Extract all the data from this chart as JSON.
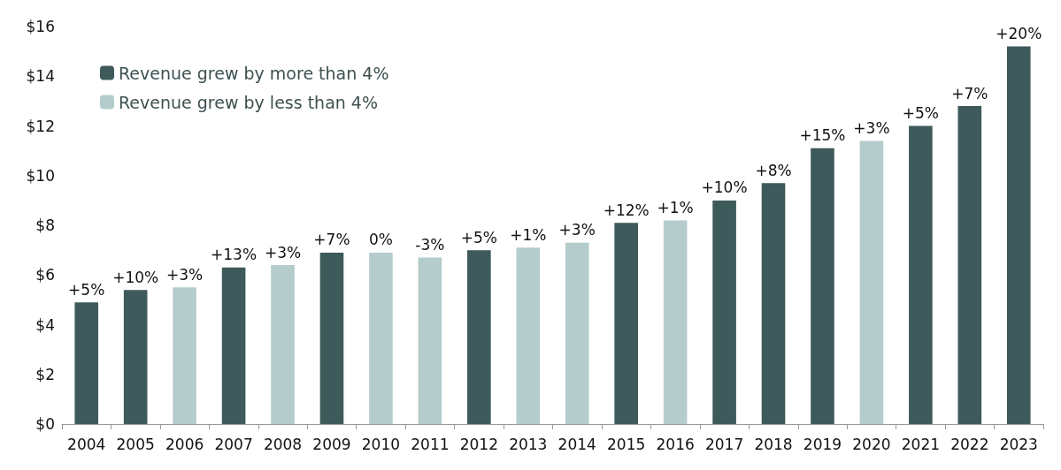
{
  "chart_data": {
    "type": "bar",
    "categories": [
      "2004",
      "2005",
      "2006",
      "2007",
      "2008",
      "2009",
      "2010",
      "2011",
      "2012",
      "2013",
      "2014",
      "2015",
      "2016",
      "2017",
      "2018",
      "2019",
      "2020",
      "2021",
      "2022",
      "2023"
    ],
    "series": [
      {
        "name": "Revenue grew by more than 4%",
        "color": "#3e5a5a",
        "values": [
          4.9,
          5.4,
          null,
          6.3,
          null,
          6.9,
          null,
          null,
          7.0,
          null,
          null,
          8.1,
          null,
          9.0,
          9.7,
          11.1,
          null,
          12.0,
          12.8,
          15.2
        ]
      },
      {
        "name": "Revenue grew by less than 4%",
        "color": "#b4cccc",
        "values": [
          null,
          null,
          5.5,
          null,
          6.4,
          null,
          6.9,
          6.7,
          null,
          7.1,
          7.3,
          null,
          8.2,
          null,
          null,
          null,
          11.4,
          null,
          null,
          null
        ]
      }
    ],
    "annotations": [
      {
        "text": "+5%",
        "x": "2004",
        "y": 4.9
      },
      {
        "text": "+10%",
        "x": "2005",
        "y": 5.4
      },
      {
        "text": "+3%",
        "x": "2006",
        "y": 5.5
      },
      {
        "text": "+13%",
        "x": "2007",
        "y": 6.3
      },
      {
        "text": "+3%",
        "x": "2008",
        "y": 6.4
      },
      {
        "text": "+7%",
        "x": "2009",
        "y": 6.9
      },
      {
        "text": "0%",
        "x": "2010",
        "y": 6.9
      },
      {
        "text": "-3%",
        "x": "2011",
        "y": 6.7
      },
      {
        "text": "+5%",
        "x": "2012",
        "y": 7.0
      },
      {
        "text": "+1%",
        "x": "2013",
        "y": 7.1
      },
      {
        "text": "+3%",
        "x": "2014",
        "y": 7.3
      },
      {
        "text": "+12%",
        "x": "2015",
        "y": 8.1
      },
      {
        "text": "+1%",
        "x": "2016",
        "y": 8.2
      },
      {
        "text": "+10%",
        "x": "2017",
        "y": 9.0
      },
      {
        "text": "+8%",
        "x": "2018",
        "y": 9.7
      },
      {
        "text": "+15%",
        "x": "2019",
        "y": 11.1
      },
      {
        "text": "+3%",
        "x": "2020",
        "y": 11.4
      },
      {
        "text": "+5%",
        "x": "2021",
        "y": 12.0
      },
      {
        "text": "+7%",
        "x": "2022",
        "y": 12.8
      },
      {
        "text": "+20%",
        "x": "2023",
        "y": 15.2
      }
    ],
    "ylim": [
      0,
      16
    ],
    "yticks": [
      {
        "value": 0,
        "label": "$0"
      },
      {
        "value": 2,
        "label": "$2"
      },
      {
        "value": 4,
        "label": "$4"
      },
      {
        "value": 6,
        "label": "$6"
      },
      {
        "value": 8,
        "label": "$8"
      },
      {
        "value": 10,
        "label": "$10"
      },
      {
        "value": 12,
        "label": "$12"
      },
      {
        "value": 14,
        "label": "$14"
      },
      {
        "value": 16,
        "label": "$16"
      }
    ],
    "grid": false,
    "legend": "top left"
  }
}
